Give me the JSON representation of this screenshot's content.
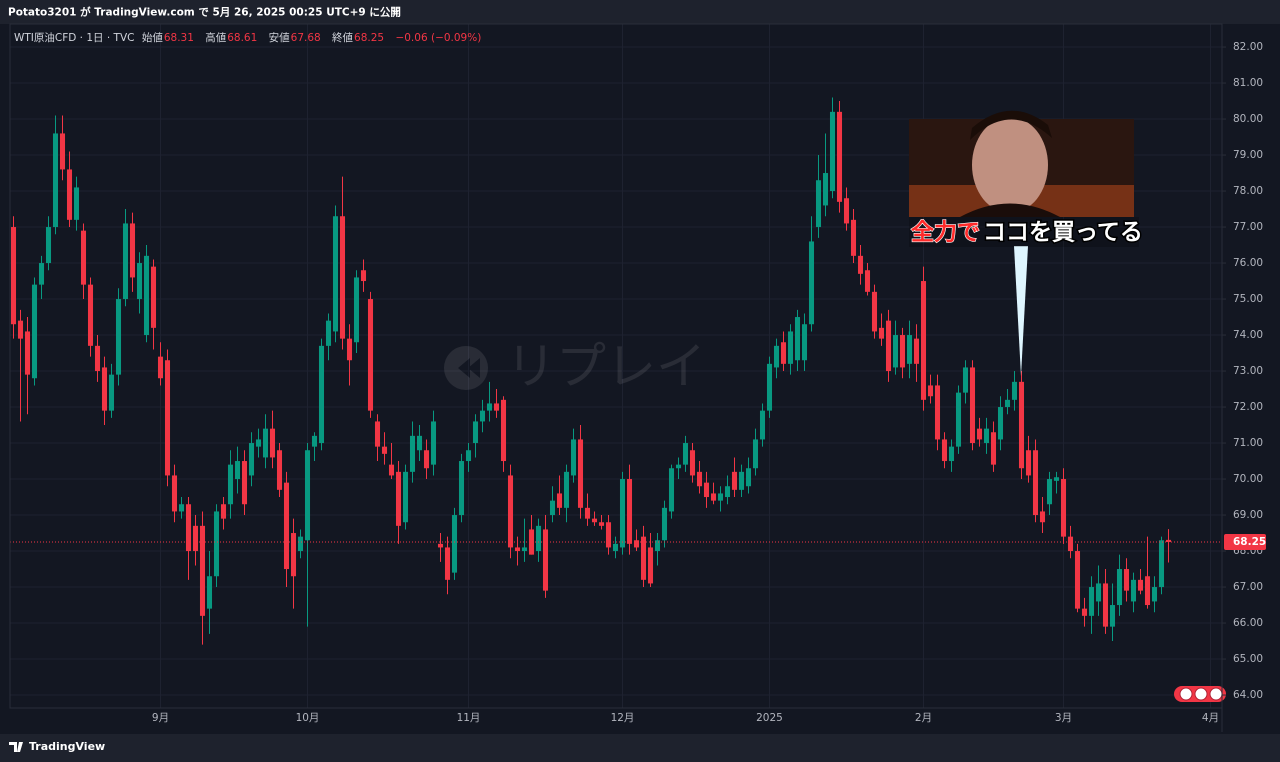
{
  "chart_data": {
    "type": "candlestick",
    "publish_note": "Potato3201 が TradingView.com で 5月 26, 2025 00:25 UTC+9 に公開",
    "symbol": "WTI原油CFD · 1日 · TVC",
    "open_label": "始値",
    "high_label": "高値",
    "low_label": "安値",
    "close_label": "終値",
    "change_label": "−0.06 (−0.09%)",
    "watermark": "リプレイ",
    "annotation_highlight": "全力で",
    "annotation_rest": "ココを買ってる",
    "brand": "TradingView",
    "up_color": "#089981",
    "down_color": "#f23645",
    "grid": true,
    "ylim": [
      63.64,
      82.64
    ],
    "yticks": [
      {
        "value": 64,
        "label": "64.00"
      },
      {
        "value": 65,
        "label": "65.00"
      },
      {
        "value": 66,
        "label": "66.00"
      },
      {
        "value": 67,
        "label": "67.00"
      },
      {
        "value": 68,
        "label": "68.00"
      },
      {
        "value": 69,
        "label": "69.00"
      },
      {
        "value": 70,
        "label": "70.00"
      },
      {
        "value": 71,
        "label": "71.00"
      },
      {
        "value": 72,
        "label": "72.00"
      },
      {
        "value": 73,
        "label": "73.00"
      },
      {
        "value": 74,
        "label": "74.00"
      },
      {
        "value": 75,
        "label": "75.00"
      },
      {
        "value": 76,
        "label": "76.00"
      },
      {
        "value": 77,
        "label": "77.00"
      },
      {
        "value": 78,
        "label": "78.00"
      },
      {
        "value": 79,
        "label": "79.00"
      },
      {
        "value": 80,
        "label": "80.00"
      },
      {
        "value": 81,
        "label": "81.00"
      },
      {
        "value": 82,
        "label": "82.00"
      }
    ],
    "categories": [
      null,
      null,
      null,
      null,
      null,
      null,
      null,
      null,
      null,
      null,
      null,
      null,
      null,
      null,
      null,
      null,
      null,
      null,
      null,
      null,
      null,
      "9月",
      null,
      null,
      null,
      null,
      null,
      null,
      null,
      null,
      null,
      null,
      null,
      null,
      null,
      null,
      null,
      null,
      null,
      null,
      null,
      null,
      "10月",
      null,
      null,
      null,
      null,
      null,
      null,
      null,
      null,
      null,
      null,
      null,
      null,
      null,
      null,
      null,
      null,
      null,
      null,
      null,
      null,
      null,
      null,
      "11月",
      null,
      null,
      null,
      null,
      null,
      null,
      null,
      null,
      null,
      null,
      null,
      null,
      null,
      null,
      null,
      null,
      null,
      null,
      null,
      null,
      null,
      "12月",
      null,
      null,
      null,
      null,
      null,
      null,
      null,
      null,
      null,
      null,
      null,
      null,
      null,
      null,
      null,
      null,
      null,
      null,
      null,
      null,
      "2025",
      null,
      null,
      null,
      null,
      null,
      null,
      null,
      null,
      null,
      null,
      null,
      null,
      null,
      null,
      null,
      null,
      null,
      null,
      null,
      null,
      null,
      "2月",
      null,
      null,
      null,
      null,
      null,
      null,
      null,
      null,
      null,
      null,
      null,
      null,
      null,
      null,
      null,
      null,
      null,
      null,
      null,
      "3月",
      null,
      null,
      null,
      null,
      null,
      null,
      null,
      null,
      null,
      null,
      null,
      null,
      null,
      null,
      null,
      null,
      null,
      null,
      null,
      null,
      "4月"
    ],
    "open": [
      77.0,
      74.4,
      74.1,
      72.8,
      75.4,
      76.0,
      77.0,
      79.6,
      78.6,
      77.2,
      76.9,
      75.4,
      73.7,
      73.1,
      71.9,
      72.9,
      75.0,
      77.1,
      75.0,
      74.0,
      75.9,
      73.4,
      73.3,
      70.1,
      69.1,
      69.3,
      68.7,
      68.7,
      66.4,
      67.3,
      69.3,
      69.3,
      70.0,
      70.5,
      70.1,
      70.9,
      70.6,
      71.4,
      70.8,
      69.9,
      68.5,
      68.0,
      68.3,
      70.9,
      71.0,
      73.7,
      74.1,
      77.3,
      73.9,
      73.8,
      75.8,
      75.0,
      71.6,
      70.9,
      70.4,
      70.2,
      68.8,
      70.2,
      70.8,
      70.8,
      70.4,
      68.2,
      68.1,
      67.4,
      69.0,
      70.5,
      71.0,
      71.6,
      71.9,
      72.1,
      72.2,
      70.1,
      68.1,
      68.0,
      68.6,
      68.0,
      68.6,
      69.0,
      69.6,
      69.2,
      70.1,
      71.1,
      69.2,
      68.9,
      68.8,
      68.8,
      68.0,
      68.1,
      70.0,
      68.3,
      68.4,
      68.1,
      68.0,
      68.3,
      69.1,
      70.3,
      70.4,
      70.8,
      70.2,
      69.9,
      69.6,
      69.4,
      69.5,
      70.2,
      69.7,
      69.8,
      70.3,
      71.1,
      71.9,
      73.1,
      73.8,
      73.2,
      73.3,
      73.3,
      74.3,
      77.0,
      77.6,
      78.0,
      80.2,
      77.8,
      77.2,
      76.2,
      75.8,
      75.2,
      74.2,
      74.4,
      73.1,
      74.0,
      73.2,
      73.9,
      75.5,
      72.6,
      72.6,
      71.1,
      70.5,
      70.9,
      72.4,
      73.1,
      71.4,
      71.0,
      71.3,
      71.1,
      72.0,
      72.2,
      72.7,
      70.8,
      70.8,
      69.1,
      69.3,
      69.95,
      70.0,
      68.4,
      68.0,
      66.4,
      66.2,
      66.6,
      67.1,
      65.9,
      66.5,
      67.5,
      66.6,
      67.2,
      67.3,
      66.6,
      67.0,
      68.31,
      null,
      null,
      null,
      null,
      null,
      null
    ],
    "high": [
      77.3,
      74.7,
      74.5,
      75.6,
      76.2,
      77.3,
      80.1,
      80.1,
      79.1,
      78.4,
      77.1,
      75.6,
      74.0,
      73.4,
      73.2,
      75.3,
      77.5,
      77.4,
      76.3,
      76.5,
      76.1,
      73.8,
      73.6,
      70.4,
      69.5,
      69.5,
      69.0,
      69.1,
      68.0,
      69.3,
      69.5,
      70.8,
      70.9,
      70.8,
      71.3,
      71.4,
      71.8,
      71.9,
      71.0,
      70.2,
      68.9,
      68.6,
      71.0,
      71.3,
      73.9,
      74.6,
      77.6,
      78.4,
      74.3,
      75.8,
      76.1,
      75.2,
      71.8,
      71.3,
      71.0,
      70.5,
      70.4,
      71.6,
      71.5,
      71.1,
      71.9,
      68.5,
      68.4,
      69.2,
      70.7,
      71.0,
      71.8,
      72.2,
      72.7,
      72.5,
      72.3,
      70.4,
      68.4,
      68.9,
      69.0,
      68.9,
      69.0,
      69.8,
      70.1,
      70.4,
      71.4,
      71.5,
      69.6,
      69.1,
      69.0,
      69.0,
      68.4,
      70.2,
      70.4,
      68.6,
      68.7,
      68.5,
      68.5,
      69.4,
      70.4,
      70.6,
      71.2,
      71.0,
      70.5,
      70.2,
      69.9,
      69.8,
      70.1,
      70.6,
      70.4,
      70.6,
      71.4,
      72.1,
      73.4,
      73.9,
      74.1,
      74.3,
      74.7,
      74.6,
      77.3,
      79.0,
      79.6,
      80.6,
      80.5,
      78.1,
      77.5,
      76.5,
      76.0,
      75.4,
      74.6,
      74.7,
      74.4,
      74.2,
      74.4,
      74.3,
      75.9,
      72.9,
      72.9,
      71.3,
      71.1,
      72.6,
      73.3,
      73.3,
      71.7,
      71.7,
      71.6,
      72.3,
      72.5,
      73.0,
      73.0,
      71.2,
      71.1,
      69.5,
      70.2,
      70.2,
      70.3,
      68.7,
      68.2,
      66.7,
      67.3,
      67.6,
      67.5,
      67.1,
      67.9,
      67.8,
      67.4,
      67.5,
      68.4,
      67.3,
      68.4,
      68.61,
      null,
      null,
      null,
      null,
      null,
      null
    ],
    "low": [
      73.9,
      71.6,
      71.8,
      72.6,
      75.0,
      75.8,
      76.8,
      78.3,
      77.0,
      76.9,
      75.0,
      73.4,
      72.7,
      71.5,
      71.7,
      72.6,
      74.8,
      75.2,
      74.6,
      73.8,
      73.6,
      72.6,
      69.8,
      68.8,
      68.9,
      67.2,
      67.6,
      65.4,
      65.7,
      67.0,
      68.6,
      68.9,
      69.6,
      69.0,
      69.8,
      70.6,
      70.3,
      70.3,
      69.5,
      67.0,
      66.4,
      67.8,
      65.9,
      70.5,
      70.8,
      73.3,
      73.8,
      73.6,
      72.6,
      73.5,
      75.2,
      71.7,
      70.5,
      70.4,
      70.0,
      68.2,
      68.6,
      69.9,
      70.5,
      70.0,
      70.1,
      67.7,
      66.8,
      67.2,
      68.8,
      70.2,
      70.6,
      71.3,
      71.6,
      71.7,
      70.2,
      67.8,
      67.6,
      67.7,
      67.9,
      67.7,
      66.7,
      68.8,
      69.0,
      68.8,
      69.9,
      68.9,
      68.7,
      68.7,
      68.6,
      67.9,
      67.8,
      67.9,
      67.9,
      68.0,
      67.0,
      67.0,
      67.6,
      68.1,
      68.9,
      70.0,
      70.2,
      69.9,
      69.6,
      69.2,
      69.3,
      69.1,
      69.3,
      69.5,
      69.5,
      69.6,
      70.1,
      70.9,
      71.7,
      72.8,
      73.0,
      72.9,
      73.0,
      73.0,
      74.1,
      76.7,
      77.3,
      77.8,
      77.4,
      76.9,
      76.0,
      75.4,
      75.1,
      73.9,
      73.7,
      72.7,
      72.9,
      72.8,
      72.8,
      72.7,
      71.9,
      72.1,
      70.8,
      70.3,
      70.2,
      70.7,
      72.1,
      70.8,
      70.9,
      70.7,
      70.2,
      70.8,
      71.8,
      71.9,
      70.0,
      69.9,
      68.8,
      68.5,
      69.0,
      69.6,
      68.2,
      67.8,
      66.3,
      65.9,
      65.7,
      66.2,
      65.7,
      65.5,
      66.2,
      66.6,
      66.3,
      66.8,
      66.4,
      66.3,
      66.8,
      67.68,
      null,
      null,
      null,
      null,
      null,
      null
    ],
    "close": [
      74.3,
      73.9,
      72.9,
      75.4,
      76.0,
      77.0,
      79.6,
      78.6,
      77.2,
      78.1,
      75.4,
      73.7,
      73.0,
      71.9,
      72.9,
      75.0,
      77.1,
      75.6,
      76.0,
      76.2,
      74.2,
      72.8,
      70.1,
      69.1,
      69.3,
      68.0,
      68.0,
      66.2,
      67.3,
      69.1,
      68.9,
      70.4,
      70.5,
      69.3,
      71.0,
      71.1,
      71.4,
      70.6,
      69.7,
      67.5,
      67.3,
      68.4,
      70.8,
      71.2,
      73.7,
      74.4,
      77.3,
      73.9,
      73.3,
      75.6,
      75.5,
      71.9,
      70.9,
      70.7,
      70.1,
      68.7,
      70.2,
      71.2,
      71.2,
      70.3,
      71.6,
      68.1,
      67.2,
      69.0,
      70.5,
      70.8,
      71.6,
      71.9,
      72.1,
      71.9,
      70.5,
      68.1,
      68.0,
      68.1,
      67.9,
      68.7,
      66.9,
      69.4,
      69.2,
      70.2,
      71.1,
      69.2,
      68.9,
      68.8,
      68.7,
      68.1,
      68.2,
      70.0,
      68.2,
      68.1,
      67.2,
      67.1,
      68.3,
      69.2,
      70.3,
      70.4,
      71.0,
      70.1,
      69.8,
      69.5,
      69.4,
      69.6,
      69.8,
      69.7,
      70.2,
      70.3,
      71.1,
      71.9,
      73.2,
      73.7,
      73.2,
      74.1,
      74.5,
      74.3,
      76.6,
      78.3,
      78.5,
      80.2,
      77.7,
      77.1,
      76.2,
      75.7,
      75.2,
      74.1,
      73.9,
      73.0,
      74.0,
      73.1,
      74.0,
      73.2,
      72.2,
      72.3,
      71.1,
      70.5,
      70.9,
      72.4,
      73.1,
      71.0,
      71.1,
      71.4,
      70.4,
      72.0,
      72.2,
      72.7,
      70.3,
      70.1,
      69.0,
      68.8,
      70.0,
      70.05,
      68.4,
      68.0,
      66.4,
      66.2,
      67.0,
      67.1,
      65.9,
      66.5,
      67.5,
      66.9,
      67.2,
      66.9,
      66.5,
      67.0,
      68.3,
      68.25,
      null,
      null,
      null,
      null,
      null,
      null
    ]
  }
}
